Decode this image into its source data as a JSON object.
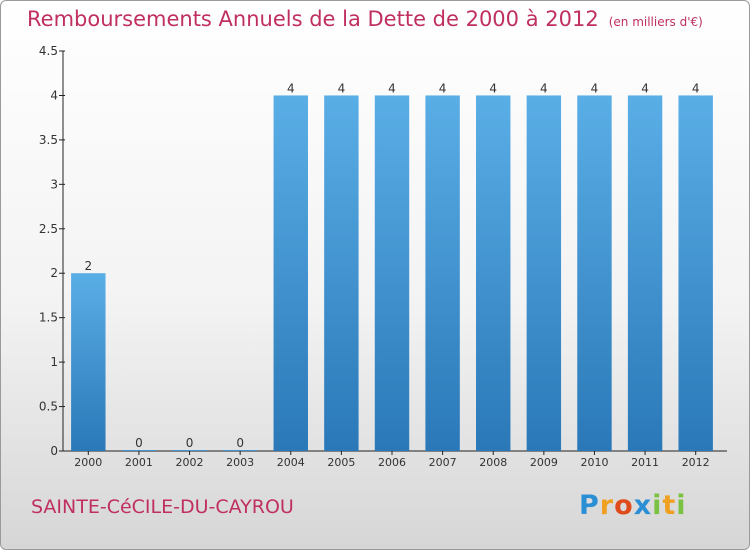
{
  "title": "Remboursements Annuels de la Dette de 2000 à 2012",
  "unit_note": "(en milliers d'€)",
  "commune": "SAINTE-CéCILE-DU-CAYROU",
  "logo": {
    "letters": [
      {
        "ch": "P",
        "color": "#2b8fd6"
      },
      {
        "ch": "r",
        "color": "#f0a020"
      },
      {
        "ch": "o",
        "color": "#e04b1c"
      },
      {
        "ch": "x",
        "color": "#2b8fd6"
      },
      {
        "ch": "i",
        "color": "#7cc242"
      },
      {
        "ch": "t",
        "color": "#f0a020"
      },
      {
        "ch": "i",
        "color": "#7cc242"
      }
    ]
  },
  "colors": {
    "title": "#c0305f",
    "bar_top": "#5aaee6",
    "bar_bottom": "#2a78b8",
    "axis": "#222222"
  },
  "chart_data": {
    "type": "bar",
    "categories": [
      "2000",
      "2001",
      "2002",
      "2003",
      "2004",
      "2005",
      "2006",
      "2007",
      "2008",
      "2009",
      "2010",
      "2011",
      "2012"
    ],
    "values": [
      2,
      0,
      0,
      0,
      4,
      4,
      4,
      4,
      4,
      4,
      4,
      4,
      4
    ],
    "data_labels": [
      "2",
      "0",
      "0",
      "0",
      "4",
      "4",
      "4",
      "4",
      "4",
      "4",
      "4",
      "4",
      "4"
    ],
    "ylim": [
      0,
      4.5
    ],
    "yticks": [
      "0",
      "0.5",
      "1",
      "1.5",
      "2",
      "2.5",
      "3",
      "3.5",
      "4",
      "4.5"
    ],
    "xlabel": "",
    "ylabel": "",
    "grid": false,
    "legend": "none"
  }
}
